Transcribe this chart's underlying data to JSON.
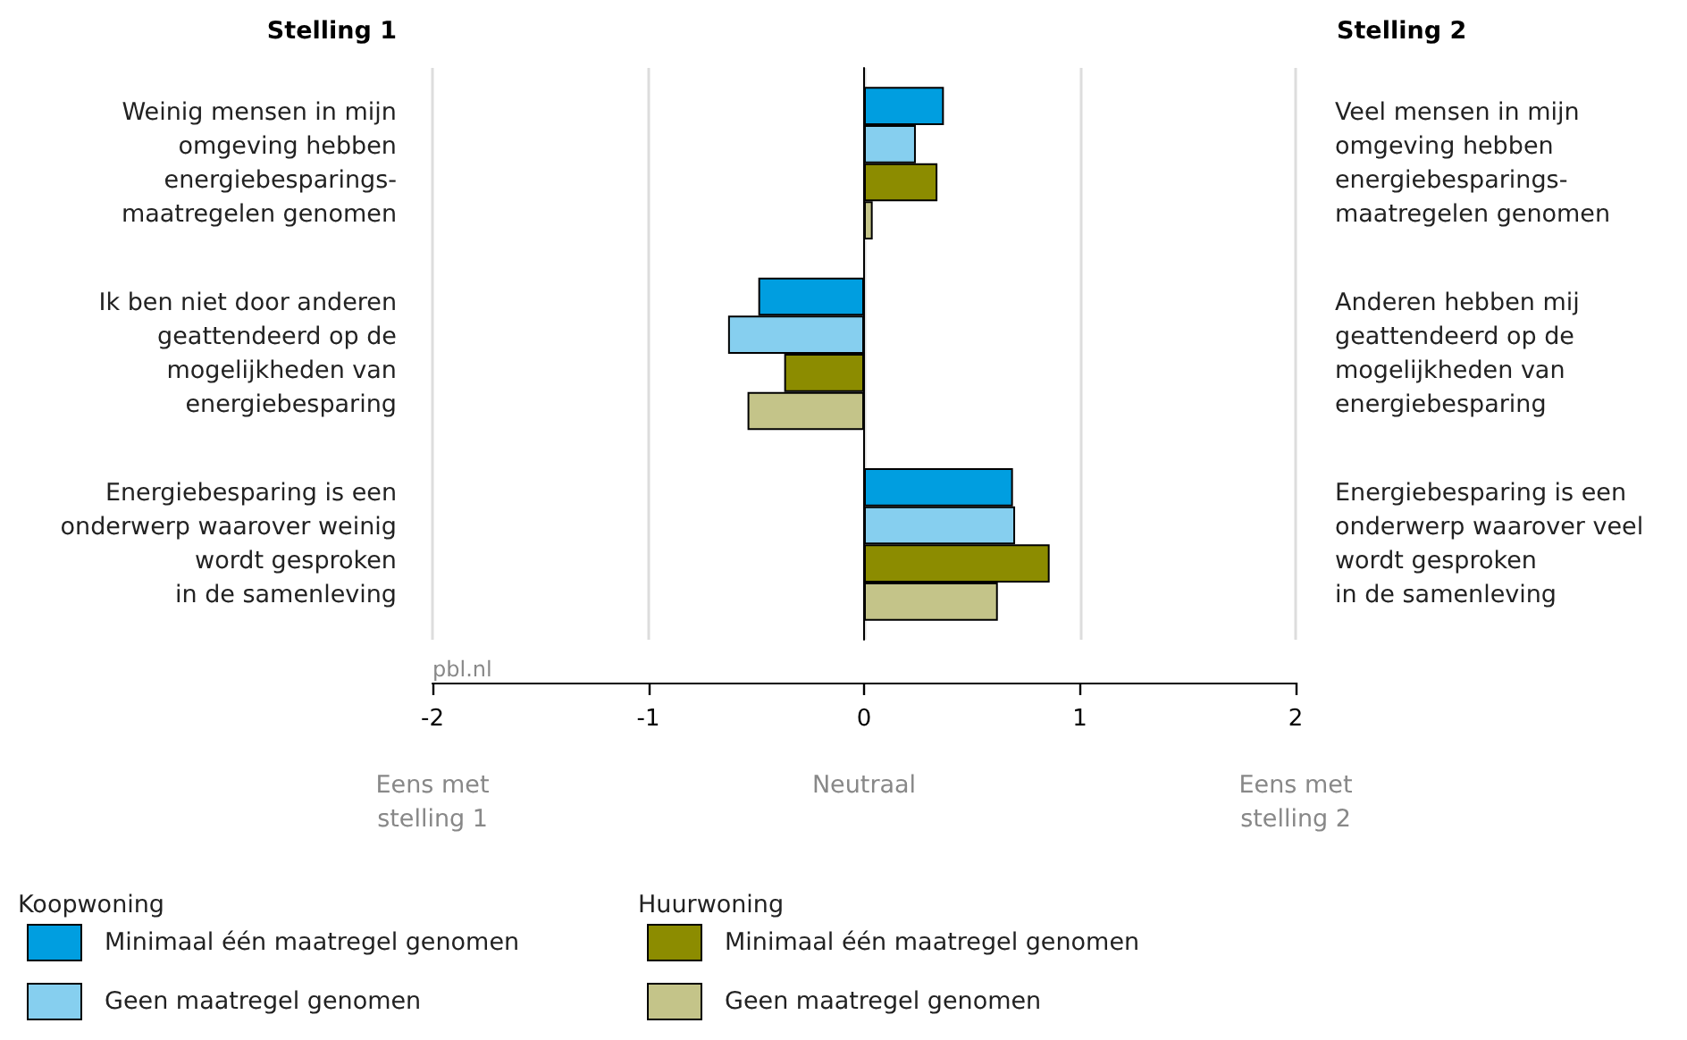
{
  "chart_data": {
    "type": "bar",
    "orientation": "horizontal",
    "ylabel": "Stelling 1",
    "y2label": "Stelling 2",
    "categories": [
      "Weinig mensen in mijn\nomgeving hebben\nenergiebesparings-\nmaatregelen genomen",
      "Ik ben niet door anderen\ngeattendeerd op de\nmogelijkheden van\nenergiebesparing",
      "Energiebesparing is een\nonderwerp waarover weinig\nwordt gesproken\nin de samenleving"
    ],
    "y2_categories": [
      "Veel mensen in mijn\nomgeving hebben\nenergiebesparings-\nmaatregelen genomen",
      "Anderen hebben mij\ngeattendeerd op de\nmogelijkheden van\nenergiebesparing",
      "Energiebesparing is een\nonderwerp waarover veel\nwordt gesproken\nin de samenleving"
    ],
    "series": [
      {
        "name": "Minimaal één maatregel genomen",
        "color": "#009ee0",
        "values": [
          0.37,
          -0.49,
          0.69
        ]
      },
      {
        "name": "Geen maatregel genomen",
        "color": "#86cfef",
        "values": [
          0.24,
          -0.63,
          0.7
        ]
      },
      {
        "name": "Minimaal één maatregel genomen",
        "color": "#8c8c00",
        "values": [
          0.34,
          -0.37,
          0.86
        ]
      },
      {
        "name": "Geen maatregel genomen",
        "color": "#c4c489",
        "values": [
          0.04,
          -0.54,
          0.62
        ]
      }
    ],
    "xlim": [
      -2,
      2
    ],
    "xticks": [
      -2,
      -1,
      0,
      1,
      2
    ],
    "grid": "x",
    "legend": "bottom left",
    "annotations": [
      "Eens met\nstelling 1",
      "Neutraal",
      "Eens met\nstelling 2",
      "pbl.nl",
      "Koopwoning",
      "Huurwoning"
    ]
  }
}
